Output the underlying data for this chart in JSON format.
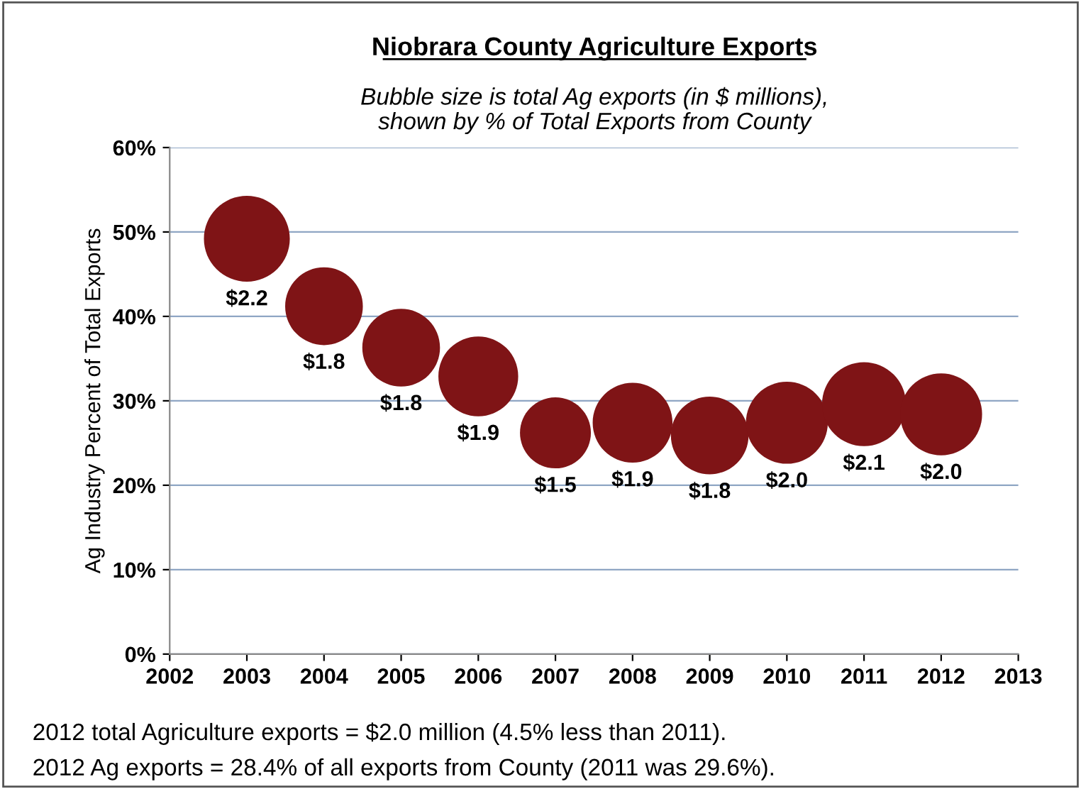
{
  "chart_data": {
    "type": "bubble",
    "title": "Niobrara County Agriculture Exports",
    "subtitle": "Bubble size is total Ag exports (in $ millions),\nshown by % of Total Exports from County",
    "ylabel": "Ag Industry Percent of Total Exports",
    "x": [
      2003,
      2004,
      2005,
      2006,
      2007,
      2008,
      2009,
      2010,
      2011,
      2012
    ],
    "series": [
      {
        "color": "#7f1416",
        "values": [
          49.2,
          41.2,
          36.3,
          32.9,
          26.2,
          27.4,
          25.9,
          27.4,
          29.6,
          28.4
        ],
        "sizes": [
          2.2,
          1.8,
          1.8,
          1.9,
          1.5,
          1.9,
          1.8,
          2.0,
          2.1,
          2.0
        ],
        "value_labels": [
          "$2.2",
          "$1.8",
          "$1.8",
          "$1.9",
          "$1.5",
          "$1.9",
          "$1.8",
          "$2.0",
          "$2.1",
          "$2.0"
        ]
      }
    ],
    "xlim": [
      2002,
      2013
    ],
    "xticks": [
      2002,
      2003,
      2004,
      2005,
      2006,
      2007,
      2008,
      2009,
      2010,
      2011,
      2012,
      2013
    ],
    "ylim": [
      0,
      60
    ],
    "yticks": [
      {
        "value": 0,
        "label": "0%"
      },
      {
        "value": 10,
        "label": "10%"
      },
      {
        "value": 20,
        "label": "20%"
      },
      {
        "value": 30,
        "label": "30%"
      },
      {
        "value": 40,
        "label": "40%"
      },
      {
        "value": 50,
        "label": "50%"
      },
      {
        "value": 60,
        "label": "60%"
      }
    ],
    "grid": "y",
    "legend": false,
    "annotations": [
      "2012 total Agriculture exports = $2.0 million (4.5% less than 2011).",
      "2012 Ag exports = 28.4% of all exports from County (2011 was 29.6%)."
    ]
  }
}
